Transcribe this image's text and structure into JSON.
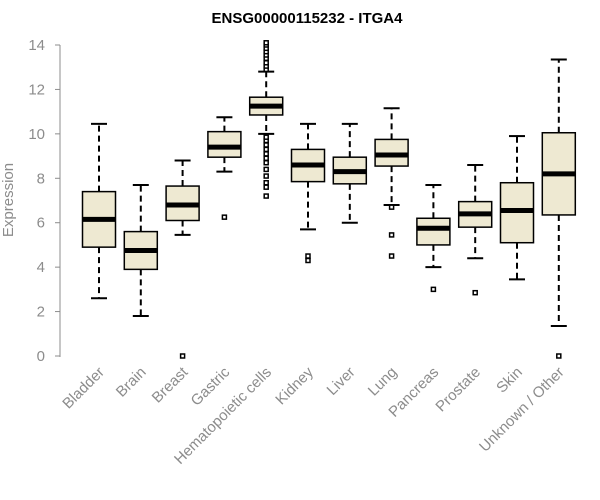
{
  "chart_data": {
    "type": "boxplot",
    "title": "ENSG00000115232 - ITGA4",
    "xlabel": "",
    "ylabel": "Expression",
    "ylim": [
      0,
      14
    ],
    "yticks": [
      0,
      2,
      4,
      6,
      8,
      10,
      12,
      14
    ],
    "box_color": "#eee9d2",
    "categories": [
      "Bladder",
      "Brain",
      "Breast",
      "Gastric",
      "Hematopoietic cells",
      "Kidney",
      "Liver",
      "Lung",
      "Pancreas",
      "Prostate",
      "Skin",
      "Unknown / Other"
    ],
    "boxes": [
      {
        "name": "Bladder",
        "whisker_low": 2.6,
        "q1": 4.9,
        "median": 6.15,
        "q3": 7.4,
        "whisker_high": 10.45,
        "outliers": []
      },
      {
        "name": "Brain",
        "whisker_low": 1.8,
        "q1": 3.9,
        "median": 4.75,
        "q3": 5.6,
        "whisker_high": 7.7,
        "outliers": []
      },
      {
        "name": "Breast",
        "whisker_low": 5.45,
        "q1": 6.1,
        "median": 6.8,
        "q3": 7.65,
        "whisker_high": 8.8,
        "outliers": [
          0.0
        ]
      },
      {
        "name": "Gastric",
        "whisker_low": 8.3,
        "q1": 8.95,
        "median": 9.4,
        "q3": 10.1,
        "whisker_high": 10.75,
        "outliers": [
          6.25
        ]
      },
      {
        "name": "Hematopoietic cells",
        "whisker_low": 10.0,
        "q1": 10.85,
        "median": 11.25,
        "q3": 11.65,
        "whisker_high": 12.8,
        "outliers": [
          7.2,
          7.6,
          7.8,
          8.1,
          8.4,
          8.7,
          8.9,
          9.1,
          9.3,
          9.5,
          9.7,
          9.85,
          12.9,
          13.05,
          13.2,
          13.4,
          13.55,
          13.7,
          13.85,
          14.0,
          14.1
        ]
      },
      {
        "name": "Kidney",
        "whisker_low": 5.7,
        "q1": 7.85,
        "median": 8.6,
        "q3": 9.3,
        "whisker_high": 10.45,
        "outliers": [
          4.3,
          4.5
        ]
      },
      {
        "name": "Liver",
        "whisker_low": 6.0,
        "q1": 7.75,
        "median": 8.3,
        "q3": 8.95,
        "whisker_high": 10.45,
        "outliers": []
      },
      {
        "name": "Lung",
        "whisker_low": 6.8,
        "q1": 8.55,
        "median": 9.05,
        "q3": 9.75,
        "whisker_high": 11.15,
        "outliers": [
          6.7,
          5.45,
          4.5
        ]
      },
      {
        "name": "Pancreas",
        "whisker_low": 4.0,
        "q1": 5.0,
        "median": 5.75,
        "q3": 6.2,
        "whisker_high": 7.7,
        "outliers": [
          3.0
        ]
      },
      {
        "name": "Prostate",
        "whisker_low": 4.4,
        "q1": 5.8,
        "median": 6.4,
        "q3": 6.95,
        "whisker_high": 8.6,
        "outliers": [
          2.85
        ]
      },
      {
        "name": "Skin",
        "whisker_low": 3.45,
        "q1": 5.1,
        "median": 6.55,
        "q3": 7.8,
        "whisker_high": 9.9,
        "outliers": []
      },
      {
        "name": "Unknown / Other",
        "whisker_low": 1.35,
        "q1": 6.35,
        "median": 8.2,
        "q3": 10.05,
        "whisker_high": 13.35,
        "outliers": [
          0.0
        ]
      }
    ]
  }
}
